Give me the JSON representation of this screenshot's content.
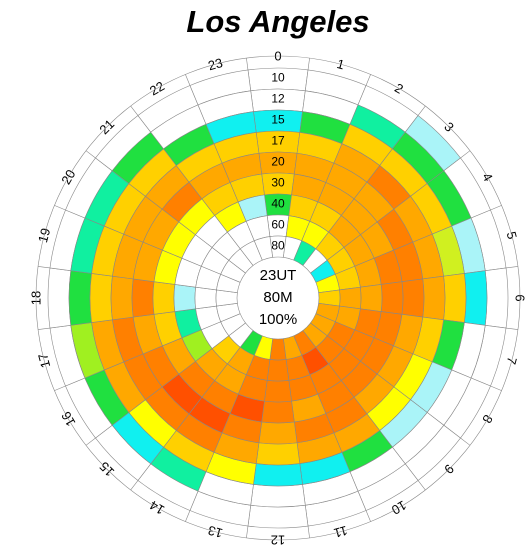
{
  "chart_data": {
    "type": "polar_heatmap",
    "title": "Los Angeles",
    "center_labels": [
      "23UT",
      "80M",
      "100%"
    ],
    "hours": [
      "0",
      "1",
      "2",
      "3",
      "4",
      "5",
      "6",
      "7",
      "8",
      "9",
      "10",
      "11",
      "12",
      "13",
      "14",
      "15",
      "16",
      "17",
      "18",
      "19",
      "20",
      "21",
      "22",
      "23"
    ],
    "bands": [
      "10",
      "12",
      "15",
      "17",
      "20",
      "30",
      "40",
      "60",
      "80"
    ],
    "cells": [
      [
        "#ffffff",
        "#ffffff",
        "#10f0f0",
        "#ffd000",
        "#ffa800",
        "#ffd000",
        "#20e040",
        "#ffffff",
        "#ffffff"
      ],
      [
        "#ffffff",
        "#ffffff",
        "#20e040",
        "#ffd000",
        "#ffa800",
        "#ffa800",
        "#ffd000",
        "#ffff00",
        "#ffffff"
      ],
      [
        "#ffffff",
        "#10f0a0",
        "#ffd000",
        "#ffa800",
        "#ffa800",
        "#ffa800",
        "#ffd000",
        "#ffff00",
        "#10f0a0"
      ],
      [
        "#aaf4f8",
        "#20e040",
        "#ffd000",
        "#ff8000",
        "#ffa800",
        "#ffa800",
        "#ffa800",
        "#ffd000",
        "#ffffff"
      ],
      [
        "#ffffff",
        "#20e040",
        "#ffd000",
        "#ffa800",
        "#ff8000",
        "#ffa800",
        "#ffa800",
        "#ffd000",
        "#10f0f0"
      ],
      [
        "#ffffff",
        "#aaf4f8",
        "#d0f020",
        "#ffa800",
        "#ff8000",
        "#ff8000",
        "#ffa800",
        "#ffd000",
        "#ffff00"
      ],
      [
        "#ffffff",
        "#10f0f0",
        "#ffd000",
        "#ffa800",
        "#ff8000",
        "#ff8000",
        "#ffa800",
        "#ffa800",
        "#ffd000"
      ],
      [
        "#ffffff",
        "#ffffff",
        "#20e040",
        "#ffd000",
        "#ffa800",
        "#ff8000",
        "#ff8000",
        "#ffa800",
        "#ffa800"
      ],
      [
        "#ffffff",
        "#ffffff",
        "#aaf4f8",
        "#ffff00",
        "#ffa800",
        "#ff8000",
        "#ff8000",
        "#ff8000",
        "#ffa800"
      ],
      [
        "#ffffff",
        "#ffffff",
        "#aaf4f8",
        "#ffff00",
        "#ffa800",
        "#ff8000",
        "#ff8000",
        "#ff8000",
        "#ffa800"
      ],
      [
        "#ffffff",
        "#ffffff",
        "#20e040",
        "#ffa800",
        "#ff8000",
        "#ff8000",
        "#ff8000",
        "#ff5000",
        "#ff8000"
      ],
      [
        "#ffffff",
        "#ffffff",
        "#10f0f0",
        "#ffa800",
        "#ff8000",
        "#ffa800",
        "#ff8000",
        "#ff8000",
        "#ffa800"
      ],
      [
        "#ffffff",
        "#ffffff",
        "#10f0f0",
        "#ffd000",
        "#ffa800",
        "#ff8000",
        "#ff8000",
        "#ff8000",
        "#ff8000"
      ],
      [
        "#ffffff",
        "#ffffff",
        "#ffff00",
        "#ffa800",
        "#ff8000",
        "#ff5000",
        "#ff8000",
        "#ff8000",
        "#ffff00"
      ],
      [
        "#ffffff",
        "#10f0a0",
        "#ffd000",
        "#ff8000",
        "#ff5000",
        "#ff8000",
        "#ffa800",
        "#ffa800",
        "#20e040"
      ],
      [
        "#ffffff",
        "#10f0f0",
        "#ffff00",
        "#ff8000",
        "#ff5000",
        "#ff8000",
        "#ffa800",
        "#ffd000",
        "#ffffff"
      ],
      [
        "#ffffff",
        "#20e040",
        "#ffa800",
        "#ff8000",
        "#ff8000",
        "#ffa800",
        "#a0f020",
        "#ffffff",
        "#ffffff"
      ],
      [
        "#ffffff",
        "#a0f020",
        "#ffa800",
        "#ff8000",
        "#ffa800",
        "#ffd000",
        "#10f0a0",
        "#ffffff",
        "#ffffff"
      ],
      [
        "#ffffff",
        "#20e040",
        "#ffd000",
        "#ffa800",
        "#ff8000",
        "#ffd000",
        "#aaf4f8",
        "#ffffff",
        "#ffffff"
      ],
      [
        "#ffffff",
        "#10f0a0",
        "#ffd000",
        "#ffa800",
        "#ffa800",
        "#ffff00",
        "#ffffff",
        "#ffffff",
        "#ffffff"
      ],
      [
        "#ffffff",
        "#10f0a0",
        "#ffd000",
        "#ffa800",
        "#ffa800",
        "#ffff00",
        "#ffffff",
        "#ffffff",
        "#ffffff"
      ],
      [
        "#ffffff",
        "#20e040",
        "#ffd000",
        "#ffa800",
        "#ff8000",
        "#ffff00",
        "#ffffff",
        "#ffffff",
        "#ffffff"
      ],
      [
        "#ffffff",
        "#ffffff",
        "#20e040",
        "#ffd000",
        "#ffa800",
        "#ffd000",
        "#ffff00",
        "#ffffff",
        "#ffffff"
      ],
      [
        "#ffffff",
        "#ffffff",
        "#10f0f0",
        "#ffd000",
        "#ffa800",
        "#ffd000",
        "#aaf4f8",
        "#ffffff",
        "#ffffff"
      ]
    ]
  }
}
